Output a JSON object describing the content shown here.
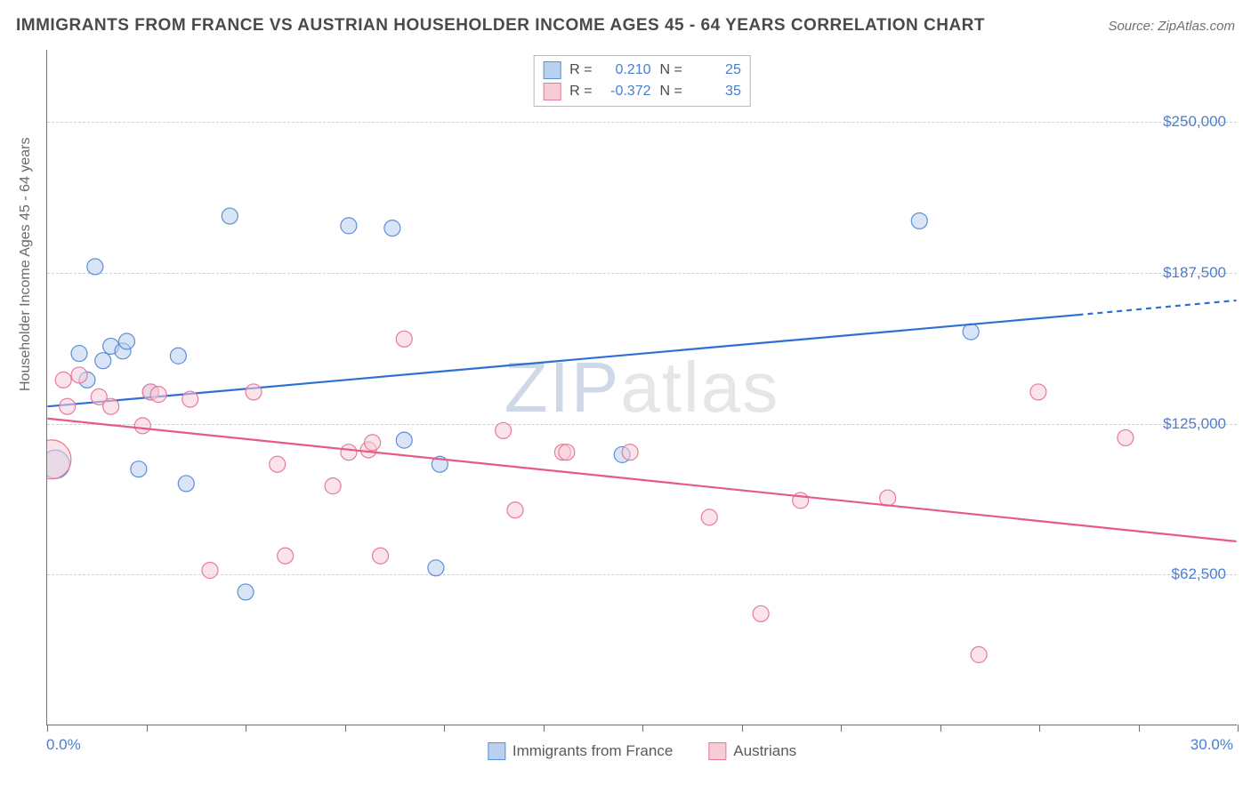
{
  "title": "IMMIGRANTS FROM FRANCE VS AUSTRIAN HOUSEHOLDER INCOME AGES 45 - 64 YEARS CORRELATION CHART",
  "source": "Source: ZipAtlas.com",
  "ylabel": "Householder Income Ages 45 - 64 years",
  "watermark_a": "ZIP",
  "watermark_b": "atlas",
  "chart": {
    "type": "scatter-with-regression",
    "background_color": "#ffffff",
    "grid_color": "#cfcfcf",
    "axis_color": "#707070",
    "label_fontsize": 16,
    "tick_fontsize": 17,
    "xlim": [
      0.0,
      30.0
    ],
    "ylim": [
      0,
      280000
    ],
    "x_tick_positions": [
      0,
      2.5,
      5,
      7.5,
      10,
      12.5,
      15,
      17.5,
      20,
      22.5,
      25,
      27.5,
      30
    ],
    "x_labels": {
      "min": "0.0%",
      "max": "30.0%"
    },
    "y_gridlines": [
      62500,
      125000,
      187500,
      250000
    ],
    "y_labels": [
      "$62,500",
      "$125,000",
      "$187,500",
      "$250,000"
    ],
    "marker_radius": 9,
    "marker_opacity": 0.55,
    "marker_stroke_width": 1.2,
    "regression_line_width": 2.2,
    "series": [
      {
        "name": "Immigrants from France",
        "color_fill": "#b9d0ee",
        "color_stroke": "#5b8fd6",
        "line_color": "#2e6fd6",
        "R": "0.210",
        "N": "25",
        "regression": {
          "x1": 0,
          "y1": 132000,
          "x2": 26,
          "y2": 170000,
          "x2_dash": 30,
          "y2_dash": 176000
        },
        "points": [
          {
            "x": 0.2,
            "y": 108000,
            "r": 16
          },
          {
            "x": 0.8,
            "y": 154000
          },
          {
            "x": 1.0,
            "y": 143000
          },
          {
            "x": 1.2,
            "y": 190000
          },
          {
            "x": 1.4,
            "y": 151000
          },
          {
            "x": 1.6,
            "y": 157000
          },
          {
            "x": 1.9,
            "y": 155000
          },
          {
            "x": 2.0,
            "y": 159000
          },
          {
            "x": 2.3,
            "y": 106000
          },
          {
            "x": 2.6,
            "y": 138000
          },
          {
            "x": 3.3,
            "y": 153000
          },
          {
            "x": 3.5,
            "y": 100000
          },
          {
            "x": 4.6,
            "y": 211000
          },
          {
            "x": 5.0,
            "y": 55000
          },
          {
            "x": 7.6,
            "y": 207000
          },
          {
            "x": 8.7,
            "y": 206000
          },
          {
            "x": 9.0,
            "y": 118000
          },
          {
            "x": 9.8,
            "y": 65000
          },
          {
            "x": 9.9,
            "y": 108000
          },
          {
            "x": 14.5,
            "y": 112000
          },
          {
            "x": 22.0,
            "y": 209000
          },
          {
            "x": 23.3,
            "y": 163000
          }
        ]
      },
      {
        "name": "Austrians",
        "color_fill": "#f6cdd7",
        "color_stroke": "#e77a9a",
        "line_color": "#e65a88",
        "R": "-0.372",
        "N": "35",
        "regression": {
          "x1": 0,
          "y1": 127000,
          "x2": 30,
          "y2": 76000
        },
        "points": [
          {
            "x": 0.1,
            "y": 110000,
            "r": 22
          },
          {
            "x": 0.4,
            "y": 143000
          },
          {
            "x": 0.5,
            "y": 132000
          },
          {
            "x": 0.8,
            "y": 145000
          },
          {
            "x": 1.3,
            "y": 136000
          },
          {
            "x": 1.6,
            "y": 132000
          },
          {
            "x": 2.4,
            "y": 124000
          },
          {
            "x": 2.6,
            "y": 138000
          },
          {
            "x": 2.8,
            "y": 137000
          },
          {
            "x": 3.6,
            "y": 135000
          },
          {
            "x": 4.1,
            "y": 64000
          },
          {
            "x": 5.2,
            "y": 138000
          },
          {
            "x": 5.8,
            "y": 108000
          },
          {
            "x": 6.0,
            "y": 70000
          },
          {
            "x": 7.2,
            "y": 99000
          },
          {
            "x": 7.6,
            "y": 113000
          },
          {
            "x": 8.1,
            "y": 114000
          },
          {
            "x": 8.2,
            "y": 117000
          },
          {
            "x": 8.4,
            "y": 70000
          },
          {
            "x": 9.0,
            "y": 160000
          },
          {
            "x": 11.5,
            "y": 122000
          },
          {
            "x": 11.8,
            "y": 89000
          },
          {
            "x": 13.0,
            "y": 113000
          },
          {
            "x": 13.1,
            "y": 113000
          },
          {
            "x": 14.7,
            "y": 113000
          },
          {
            "x": 16.7,
            "y": 86000
          },
          {
            "x": 18.0,
            "y": 46000
          },
          {
            "x": 19.0,
            "y": 93000
          },
          {
            "x": 21.2,
            "y": 94000
          },
          {
            "x": 23.5,
            "y": 29000
          },
          {
            "x": 25.0,
            "y": 138000
          },
          {
            "x": 27.2,
            "y": 119000
          }
        ]
      }
    ]
  }
}
